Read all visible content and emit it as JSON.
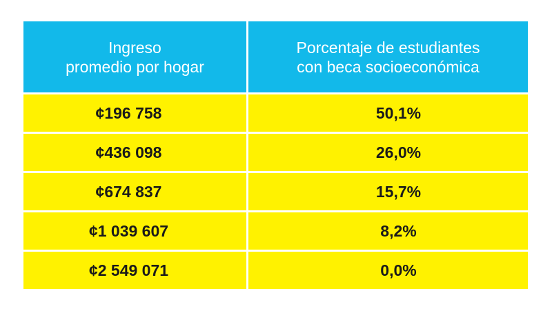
{
  "chart_data": {
    "type": "table",
    "columns": [
      "Ingreso\npromedio por hogar",
      "Porcentaje de estudiantes\ncon beca socioeconómica"
    ],
    "rows": [
      [
        "¢196 758",
        "50,1%"
      ],
      [
        "¢436 098",
        "26,0%"
      ],
      [
        "¢674 837",
        "15,7%"
      ],
      [
        "¢1 039 607",
        "8,2%"
      ],
      [
        "¢2 549 071",
        "0,0%"
      ]
    ]
  },
  "colors": {
    "header_bg": "#12b9ea",
    "row_bg": "#fff200",
    "header_text": "#ffffff",
    "row_text": "#1a1a1a"
  }
}
